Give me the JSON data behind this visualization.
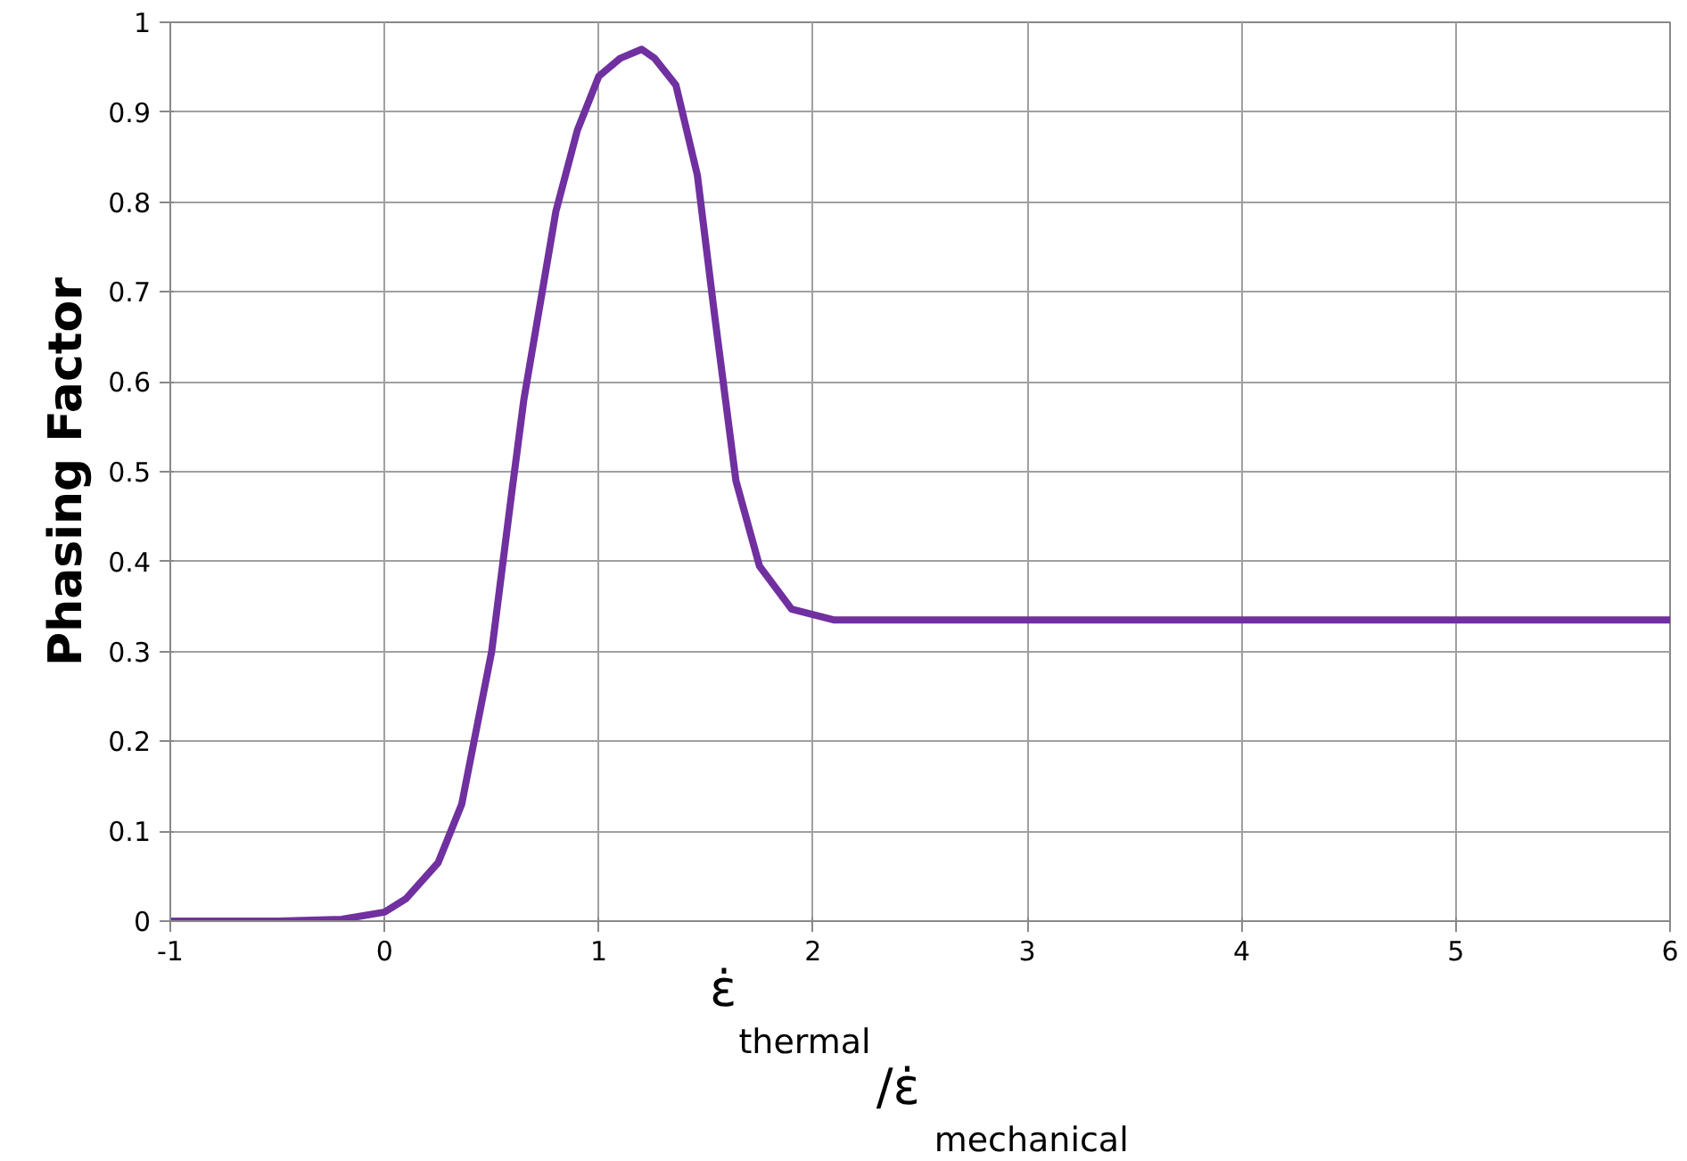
{
  "chart_data": {
    "type": "line",
    "xlabel": "ε̇$_{thermal}$/ε̇$_{mechanical}$",
    "ylabel": "Phasing Factor",
    "x": [
      -1,
      -0.5,
      -0.2,
      0,
      0.1,
      0.25,
      0.36,
      0.5,
      0.59,
      0.65,
      0.8,
      0.9,
      1,
      1.1,
      1.2,
      1.26,
      1.36,
      1.46,
      1.54,
      1.64,
      1.75,
      1.9,
      2.1,
      3,
      4,
      5,
      6
    ],
    "series": [
      {
        "color": "#7030a0",
        "values": [
          0,
          0,
          0.002,
          0.01,
          0.025,
          0.065,
          0.13,
          0.3,
          0.47,
          0.58,
          0.79,
          0.88,
          0.94,
          0.96,
          0.97,
          0.96,
          0.93,
          0.83,
          0.675,
          0.49,
          0.395,
          0.347,
          0.335,
          0.335,
          0.335,
          0.335,
          0.335
        ]
      }
    ],
    "xlim": [
      -1,
      6
    ],
    "ylim": [
      0,
      1
    ],
    "xticks": [
      -1,
      0,
      1,
      2,
      3,
      4,
      5,
      6
    ],
    "yticks": [
      0,
      0.1,
      0.2,
      0.3,
      0.4,
      0.5,
      0.6,
      0.7,
      0.8,
      0.9,
      1
    ],
    "grid": true,
    "marker": "none",
    "line_style": "solid"
  }
}
